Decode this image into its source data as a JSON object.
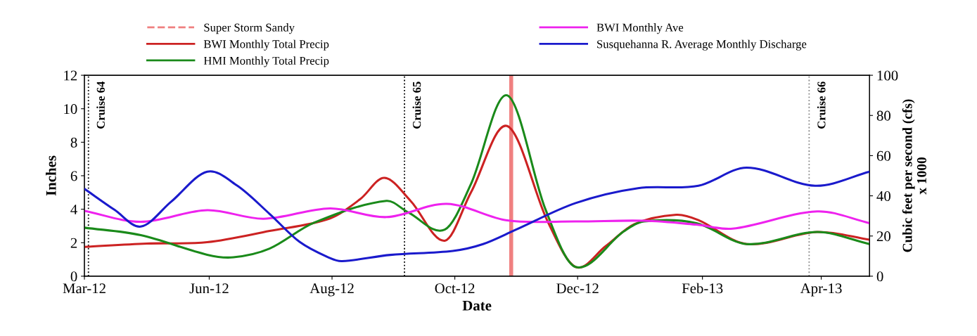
{
  "chart_data": {
    "type": "line",
    "xlabel": "Date",
    "ylabel": "Inches",
    "y2label": "Cubic feet per second (cfs)\nx 1000",
    "xlim": [
      "2012-03-31",
      "2013-04-25"
    ],
    "xticks": [
      {
        "value": "2012-03-31",
        "label": "Mar-12"
      },
      {
        "value": "2012-06-01",
        "label": "Jun-12"
      },
      {
        "value": "2012-08-01",
        "label": "Aug-12"
      },
      {
        "value": "2012-10-01",
        "label": "Oct-12"
      },
      {
        "value": "2012-12-01",
        "label": "Dec-12"
      },
      {
        "value": "2013-02-01",
        "label": "Feb-13"
      },
      {
        "value": "2013-04-01",
        "label": "Apr-13"
      }
    ],
    "ylim": [
      0,
      12
    ],
    "yticks": [
      0,
      2,
      4,
      6,
      8,
      10,
      12
    ],
    "y2lim": [
      0,
      100
    ],
    "y2ticks": [
      0,
      20,
      40,
      60,
      80,
      100
    ],
    "grid": false,
    "legend": "top",
    "marker": "none",
    "series": [
      {
        "name": "BWI Monthly Total Precip",
        "color": "#cc2222",
        "x": [
          "2012-03-31",
          "2012-05-01",
          "2012-05-31",
          "2012-07-01",
          "2012-07-31",
          "2012-08-15",
          "2012-08-27",
          "2012-09-09",
          "2012-09-26",
          "2012-10-09",
          "2012-10-27",
          "2012-11-16",
          "2012-11-30",
          "2012-12-15",
          "2012-12-29",
          "2013-01-19",
          "2013-01-30",
          "2013-02-23",
          "2013-03-30",
          "2013-04-25"
        ],
        "values": [
          1.75,
          1.95,
          2.03,
          2.7,
          3.45,
          4.6,
          5.87,
          4.5,
          2.12,
          5.0,
          8.97,
          3.3,
          0.55,
          1.8,
          3.1,
          3.67,
          3.35,
          1.92,
          2.64,
          2.18
        ]
      },
      {
        "name": "HMI Monthly Total Precip",
        "color": "#1a8a1a",
        "x": [
          "2012-03-31",
          "2012-04-28",
          "2012-05-31",
          "2012-06-13",
          "2012-07-01",
          "2012-07-23",
          "2012-08-28",
          "2012-09-08",
          "2012-09-26",
          "2012-10-09",
          "2012-10-27",
          "2012-11-15",
          "2012-11-30",
          "2012-12-24",
          "2013-01-03",
          "2013-01-29",
          "2013-02-23",
          "2013-03-30",
          "2013-04-25"
        ],
        "values": [
          2.9,
          2.45,
          1.28,
          1.13,
          1.65,
          3.19,
          4.5,
          3.8,
          2.78,
          5.5,
          10.8,
          4.0,
          0.55,
          2.68,
          3.27,
          3.17,
          1.92,
          2.64,
          1.92
        ]
      },
      {
        "name": "BWI Monthly Ave",
        "color": "#ee22ee",
        "x": [
          "2012-03-31",
          "2012-04-28",
          "2012-05-31",
          "2012-06-28",
          "2012-07-31",
          "2012-08-28",
          "2012-09-27",
          "2012-10-27",
          "2012-11-30",
          "2013-01-03",
          "2013-01-29",
          "2013-02-16",
          "2013-03-30",
          "2013-04-25"
        ],
        "values": [
          3.9,
          3.25,
          3.94,
          3.43,
          4.05,
          3.53,
          4.32,
          3.33,
          3.27,
          3.31,
          3.08,
          2.84,
          3.87,
          3.17
        ]
      },
      {
        "name": "Susquehanna R. Average Monthly Discharge",
        "color": "#1a1acc",
        "axis": "y2",
        "x": [
          "2012-03-31",
          "2012-04-15",
          "2012-04-28",
          "2012-05-13",
          "2012-05-31",
          "2012-06-15",
          "2012-07-01",
          "2012-07-16",
          "2012-07-31",
          "2012-08-06",
          "2012-08-30",
          "2012-09-30",
          "2012-10-15",
          "2012-10-31",
          "2012-11-30",
          "2012-12-31",
          "2013-01-30",
          "2013-02-23",
          "2013-03-29",
          "2013-04-25"
        ],
        "values": [
          43.5,
          33,
          24.7,
          37,
          52,
          45,
          31,
          17,
          9,
          7.5,
          10.6,
          12.6,
          16,
          23,
          36.4,
          43.8,
          45,
          54,
          45,
          52
        ]
      }
    ],
    "ref_lines": [
      {
        "axis": "x",
        "value": "2012-10-29",
        "label": "Super Storm Sandy",
        "color": "#f08080",
        "line_style": "solid"
      },
      {
        "axis": "x",
        "value": "2012-04-02",
        "label": "Cruise 64",
        "color": "#000000",
        "line_style": "dotted"
      },
      {
        "axis": "x",
        "value": "2012-09-06",
        "label": "Cruise 65",
        "color": "#000000",
        "line_style": "dotted"
      },
      {
        "axis": "x",
        "value": "2013-03-26",
        "label": "Cruise 66",
        "color": "#888888",
        "line_style": "dotted"
      }
    ]
  }
}
